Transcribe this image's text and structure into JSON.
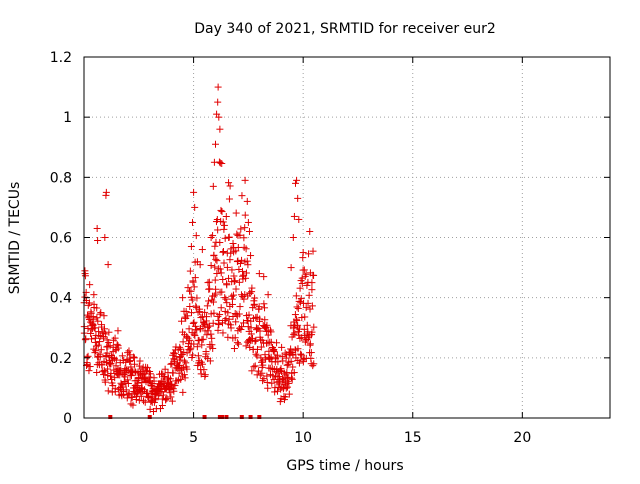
{
  "chart_data": {
    "type": "scatter",
    "title": "Day 340 of 2021, SRMTID for receiver eur2",
    "xlabel": "GPS time / hours",
    "ylabel": "SRMTID / TECUs",
    "xlim": [
      0,
      24
    ],
    "ylim": [
      0,
      1.2
    ],
    "xticks": [
      0,
      5,
      10,
      15,
      20
    ],
    "xtick_labels": [
      "0",
      "5",
      "10",
      "15",
      "20"
    ],
    "yticks": [
      0,
      0.2,
      0.4,
      0.6,
      0.8,
      1,
      1.2
    ],
    "ytick_labels": [
      "0",
      "0.2",
      "0.4",
      "0.6",
      "0.8",
      "1",
      "1.2"
    ],
    "grid": true,
    "marker": "+",
    "color": "#e00000",
    "profile": [
      {
        "x": 0.0,
        "y": 0.3
      },
      {
        "x": 0.3,
        "y": 0.24
      },
      {
        "x": 0.6,
        "y": 0.28
      },
      {
        "x": 0.9,
        "y": 0.22
      },
      {
        "x": 1.2,
        "y": 0.18
      },
      {
        "x": 1.6,
        "y": 0.14
      },
      {
        "x": 2.0,
        "y": 0.13
      },
      {
        "x": 2.5,
        "y": 0.12
      },
      {
        "x": 3.0,
        "y": 0.09
      },
      {
        "x": 3.3,
        "y": 0.07
      },
      {
        "x": 3.6,
        "y": 0.1
      },
      {
        "x": 4.0,
        "y": 0.12
      },
      {
        "x": 4.4,
        "y": 0.17
      },
      {
        "x": 4.8,
        "y": 0.3
      },
      {
        "x": 5.1,
        "y": 0.35
      },
      {
        "x": 5.5,
        "y": 0.22
      },
      {
        "x": 5.8,
        "y": 0.35
      },
      {
        "x": 6.1,
        "y": 0.52
      },
      {
        "x": 6.5,
        "y": 0.45
      },
      {
        "x": 6.9,
        "y": 0.4
      },
      {
        "x": 7.3,
        "y": 0.45
      },
      {
        "x": 7.7,
        "y": 0.3
      },
      {
        "x": 8.1,
        "y": 0.22
      },
      {
        "x": 8.5,
        "y": 0.2
      },
      {
        "x": 8.9,
        "y": 0.14
      },
      {
        "x": 9.3,
        "y": 0.12
      },
      {
        "x": 9.7,
        "y": 0.28
      },
      {
        "x": 10.1,
        "y": 0.34
      },
      {
        "x": 10.5,
        "y": 0.32
      }
    ],
    "x_range_hours": [
      0,
      10.5
    ],
    "point_count": 900,
    "spikes": [
      {
        "x": 0.05,
        "y": 0.48
      },
      {
        "x": 0.45,
        "y": 0.41
      },
      {
        "x": 0.6,
        "y": 0.63
      },
      {
        "x": 0.62,
        "y": 0.59
      },
      {
        "x": 0.95,
        "y": 0.6
      },
      {
        "x": 1.0,
        "y": 0.74
      },
      {
        "x": 1.02,
        "y": 0.75
      },
      {
        "x": 1.1,
        "y": 0.51
      },
      {
        "x": 1.55,
        "y": 0.29
      },
      {
        "x": 2.1,
        "y": 0.21
      },
      {
        "x": 2.3,
        "y": 0.2
      },
      {
        "x": 4.5,
        "y": 0.4
      },
      {
        "x": 4.9,
        "y": 0.57
      },
      {
        "x": 4.95,
        "y": 0.65
      },
      {
        "x": 5.0,
        "y": 0.75
      },
      {
        "x": 5.05,
        "y": 0.7
      },
      {
        "x": 5.4,
        "y": 0.56
      },
      {
        "x": 5.8,
        "y": 0.6
      },
      {
        "x": 5.9,
        "y": 0.77
      },
      {
        "x": 5.95,
        "y": 0.85
      },
      {
        "x": 6.0,
        "y": 0.91
      },
      {
        "x": 6.05,
        "y": 1.01
      },
      {
        "x": 6.1,
        "y": 1.05
      },
      {
        "x": 6.12,
        "y": 1.1
      },
      {
        "x": 6.15,
        "y": 1.0
      },
      {
        "x": 6.2,
        "y": 0.96
      },
      {
        "x": 6.25,
        "y": 0.69
      },
      {
        "x": 6.6,
        "y": 0.6
      },
      {
        "x": 6.8,
        "y": 0.58
      },
      {
        "x": 7.0,
        "y": 0.52
      },
      {
        "x": 7.35,
        "y": 0.79
      },
      {
        "x": 7.45,
        "y": 0.72
      },
      {
        "x": 7.5,
        "y": 0.65
      },
      {
        "x": 7.55,
        "y": 0.62
      },
      {
        "x": 7.6,
        "y": 0.54
      },
      {
        "x": 8.0,
        "y": 0.48
      },
      {
        "x": 8.2,
        "y": 0.47
      },
      {
        "x": 8.4,
        "y": 0.41
      },
      {
        "x": 9.45,
        "y": 0.5
      },
      {
        "x": 9.55,
        "y": 0.6
      },
      {
        "x": 9.6,
        "y": 0.67
      },
      {
        "x": 9.65,
        "y": 0.78
      },
      {
        "x": 9.7,
        "y": 0.79
      },
      {
        "x": 9.75,
        "y": 0.73
      },
      {
        "x": 9.8,
        "y": 0.66
      },
      {
        "x": 10.0,
        "y": 0.55
      },
      {
        "x": 10.3,
        "y": 0.62
      },
      {
        "x": 10.4,
        "y": 0.45
      }
    ],
    "zero_markers_x": [
      1.2,
      3.0,
      5.5,
      6.2,
      6.3,
      6.5,
      7.2,
      7.6,
      8.0
    ],
    "series": [
      {
        "name": "SRMTID eur2",
        "description": "dense scatter of '+' markers between 0 and ~10.5 hours"
      }
    ]
  }
}
